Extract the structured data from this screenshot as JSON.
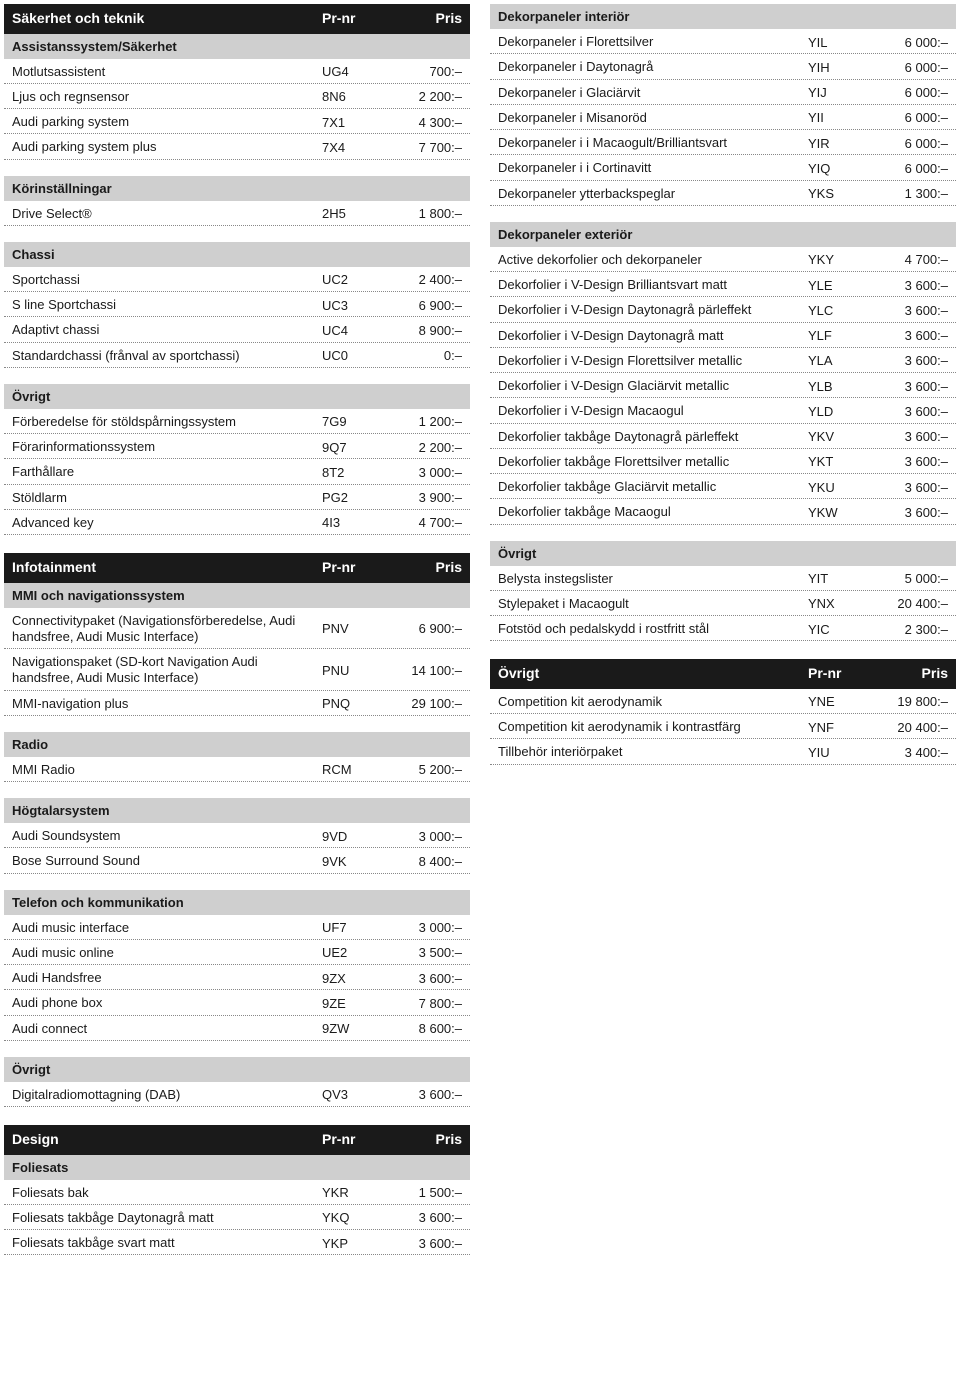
{
  "columns_labels": {
    "name": "",
    "code": "Pr-nr",
    "price": "Pris"
  },
  "left": [
    {
      "type": "header",
      "title": "Säkerhet och teknik"
    },
    {
      "type": "section",
      "title": "Assistanssystem/Säkerhet"
    },
    {
      "type": "row",
      "name": "Motlutsassistent",
      "code": "UG4",
      "price": "700:–"
    },
    {
      "type": "row",
      "name": "Ljus och regnsensor",
      "code": "8N6",
      "price": "2 200:–"
    },
    {
      "type": "row",
      "name": "Audi parking system",
      "code": "7X1",
      "price": "4 300:–"
    },
    {
      "type": "row",
      "name": "Audi parking system plus",
      "code": "7X4",
      "price": "7 700:–"
    },
    {
      "type": "section",
      "title": "Körinställningar",
      "space": true
    },
    {
      "type": "row",
      "name": "Drive Select®",
      "code": "2H5",
      "price": "1 800:–"
    },
    {
      "type": "section",
      "title": "Chassi",
      "space": true
    },
    {
      "type": "row",
      "name": "Sportchassi",
      "code": "UC2",
      "price": "2 400:–"
    },
    {
      "type": "row",
      "name": "S line Sportchassi",
      "code": "UC3",
      "price": "6 900:–"
    },
    {
      "type": "row",
      "name": "Adaptivt chassi",
      "code": "UC4",
      "price": "8 900:–"
    },
    {
      "type": "row",
      "name": "Standardchassi (frånval av sportchassi)",
      "code": "UC0",
      "price": "0:–"
    },
    {
      "type": "section",
      "title": "Övrigt",
      "space": true
    },
    {
      "type": "row",
      "name": "Förberedelse för stöldspårningssystem",
      "code": "7G9",
      "price": "1 200:–"
    },
    {
      "type": "row",
      "name": "Förarinformationssystem",
      "code": "9Q7",
      "price": "2 200:–"
    },
    {
      "type": "row",
      "name": "Farthållare",
      "code": "8T2",
      "price": "3 000:–"
    },
    {
      "type": "row",
      "name": "Stöldlarm",
      "code": "PG2",
      "price": "3 900:–"
    },
    {
      "type": "row",
      "name": "Advanced key",
      "code": "4I3",
      "price": "4 700:–"
    },
    {
      "type": "header",
      "title": "Infotainment",
      "space": true
    },
    {
      "type": "section",
      "title": "MMI och navigationssystem"
    },
    {
      "type": "row",
      "name": "Connectivitypaket (Navigationsförberedelse, Audi handsfree, Audi Music Interface)",
      "code": "PNV",
      "price": "6 900:–"
    },
    {
      "type": "row",
      "name": "Navigationspaket (SD-kort Navigation Audi handsfree, Audi Music Interface)",
      "code": "PNU",
      "price": "14 100:–"
    },
    {
      "type": "row",
      "name": "MMI-navigation plus",
      "code": "PNQ",
      "price": "29 100:–"
    },
    {
      "type": "section",
      "title": "Radio",
      "space": true
    },
    {
      "type": "row",
      "name": "MMI Radio",
      "code": "RCM",
      "price": "5 200:–"
    },
    {
      "type": "section",
      "title": "Högtalarsystem",
      "space": true
    },
    {
      "type": "row",
      "name": "Audi Soundsystem",
      "code": "9VD",
      "price": "3 000:–"
    },
    {
      "type": "row",
      "name": "Bose Surround Sound",
      "code": "9VK",
      "price": "8 400:–"
    },
    {
      "type": "section",
      "title": "Telefon och kommunikation",
      "space": true
    },
    {
      "type": "row",
      "name": "Audi music interface",
      "code": "UF7",
      "price": "3 000:–"
    },
    {
      "type": "row",
      "name": "Audi music online",
      "code": "UE2",
      "price": "3 500:–"
    },
    {
      "type": "row",
      "name": "Audi Handsfree",
      "code": "9ZX",
      "price": "3 600:–"
    },
    {
      "type": "row",
      "name": "Audi phone box",
      "code": "9ZE",
      "price": "7 800:–"
    },
    {
      "type": "row",
      "name": "Audi connect",
      "code": "9ZW",
      "price": "8 600:–"
    },
    {
      "type": "section",
      "title": "Övrigt",
      "space": true
    },
    {
      "type": "row",
      "name": "Digitalradiomottagning (DAB)",
      "code": "QV3",
      "price": "3 600:–"
    },
    {
      "type": "header",
      "title": "Design",
      "space": true
    },
    {
      "type": "section",
      "title": "Foliesats"
    },
    {
      "type": "row",
      "name": "Foliesats bak",
      "code": "YKR",
      "price": "1 500:–"
    },
    {
      "type": "row",
      "name": "Foliesats takbåge Daytonagrå matt",
      "code": "YKQ",
      "price": "3 600:–"
    },
    {
      "type": "row",
      "name": "Foliesats takbåge svart matt",
      "code": "YKP",
      "price": "3 600:–"
    }
  ],
  "right": [
    {
      "type": "section",
      "title": "Dekorpaneler interiör"
    },
    {
      "type": "row",
      "name": "Dekorpaneler i Florettsilver",
      "code": "YIL",
      "price": "6 000:–"
    },
    {
      "type": "row",
      "name": "Dekorpaneler i Daytonagrå",
      "code": "YIH",
      "price": "6 000:–"
    },
    {
      "type": "row",
      "name": "Dekorpaneler i Glaciärvit",
      "code": "YIJ",
      "price": "6 000:–"
    },
    {
      "type": "row",
      "name": "Dekorpaneler i Misanoröd",
      "code": "YII",
      "price": "6 000:–"
    },
    {
      "type": "row",
      "name": "Dekorpaneler i i Macaogult/Brilliantsvart",
      "code": "YIR",
      "price": "6 000:–"
    },
    {
      "type": "row",
      "name": "Dekorpaneler i i Cortinavitt",
      "code": "YIQ",
      "price": "6 000:–"
    },
    {
      "type": "row",
      "name": "Dekorpaneler ytterbackspeglar",
      "code": "YKS",
      "price": "1 300:–"
    },
    {
      "type": "section",
      "title": "Dekorpaneler exteriör",
      "space": true
    },
    {
      "type": "row",
      "name": "Active dekorfolier och dekorpaneler",
      "code": "YKY",
      "price": "4 700:–"
    },
    {
      "type": "row",
      "name": "Dekorfolier i V-Design Brilliantsvart matt",
      "code": "YLE",
      "price": "3 600:–"
    },
    {
      "type": "row",
      "name": "Dekorfolier i V-Design Daytonagrå pärleffekt",
      "code": "YLC",
      "price": "3 600:–"
    },
    {
      "type": "row",
      "name": "Dekorfolier i V-Design Daytonagrå matt",
      "code": "YLF",
      "price": "3 600:–"
    },
    {
      "type": "row",
      "name": "Dekorfolier i V-Design Florettsilver metallic",
      "code": "YLA",
      "price": "3 600:–"
    },
    {
      "type": "row",
      "name": "Dekorfolier i V-Design Glaciärvit metallic",
      "code": "YLB",
      "price": "3 600:–"
    },
    {
      "type": "row",
      "name": "Dekorfolier i V-Design Macaogul",
      "code": "YLD",
      "price": "3 600:–"
    },
    {
      "type": "row",
      "name": "Dekorfolier takbåge Daytonagrå pärleffekt",
      "code": "YKV",
      "price": "3 600:–"
    },
    {
      "type": "row",
      "name": "Dekorfolier takbåge Florettsilver metallic",
      "code": "YKT",
      "price": "3 600:–"
    },
    {
      "type": "row",
      "name": "Dekorfolier takbåge Glaciärvit metallic",
      "code": "YKU",
      "price": "3 600:–"
    },
    {
      "type": "row",
      "name": "Dekorfolier takbåge Macaogul",
      "code": "YKW",
      "price": "3 600:–"
    },
    {
      "type": "section",
      "title": "Övrigt",
      "space": true
    },
    {
      "type": "row",
      "name": "Belysta instegslister",
      "code": "YIT",
      "price": "5 000:–"
    },
    {
      "type": "row",
      "name": "Stylepaket i Macaogult",
      "code": "YNX",
      "price": "20 400:–"
    },
    {
      "type": "row",
      "name": "Fotstöd och pedalskydd i rostfritt stål",
      "code": "YIC",
      "price": "2 300:–"
    },
    {
      "type": "header",
      "title": "Övrigt",
      "space": true
    },
    {
      "type": "row",
      "name": "Competition kit aerodynamik",
      "code": "YNE",
      "price": "19 800:–"
    },
    {
      "type": "row",
      "name": "Competition kit aerodynamik i kontrastfärg",
      "code": "YNF",
      "price": "20 400:–"
    },
    {
      "type": "row",
      "name": "Tillbehör interiörpaket",
      "code": "YIU",
      "price": "3 400:–"
    }
  ]
}
